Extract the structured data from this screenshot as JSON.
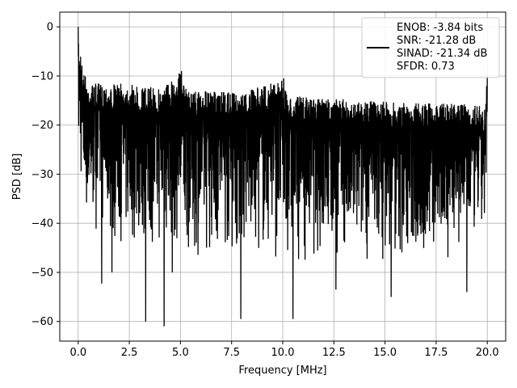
{
  "chart_data": {
    "type": "line",
    "xlabel": "Frequency [MHz]",
    "ylabel": "PSD [dB]",
    "xlim": [
      -0.9,
      20.9
    ],
    "ylim": [
      -64.0,
      3.0
    ],
    "xticks": [
      0.0,
      2.5,
      5.0,
      7.5,
      10.0,
      12.5,
      15.0,
      17.5,
      20.0
    ],
    "xtick_labels": [
      "0.0",
      "2.5",
      "5.0",
      "7.5",
      "10.0",
      "12.5",
      "15.0",
      "17.5",
      "20.0"
    ],
    "yticks": [
      0,
      -10,
      -20,
      -30,
      -40,
      -50,
      -60
    ],
    "ytick_labels": [
      "0",
      "−10",
      "−20",
      "−30",
      "−40",
      "−50",
      "−60"
    ],
    "grid": true,
    "legend_position": "top-right",
    "series_color": "#000000",
    "legend": {
      "lines": [
        "ENOB: -3.84 bits",
        "SNR: -21.28 dB",
        "SINAD: -21.34 dB",
        "SFDR: 0.73"
      ]
    },
    "series": [
      {
        "name": "ENOB: -3.84 bits\nSNR: -21.28 dB\nSINAD: -21.34 dB\nSFDR: 0.73",
        "x_start": 0.0,
        "x_end": 20.0,
        "upper_envelope": [
          [
            0.0,
            0.0
          ],
          [
            0.05,
            -5.0
          ],
          [
            0.1,
            -3.0
          ],
          [
            0.2,
            -8.0
          ],
          [
            0.5,
            -11.5
          ],
          [
            1.0,
            -11.5
          ],
          [
            2.0,
            -11.5
          ],
          [
            3.0,
            -12.0
          ],
          [
            4.0,
            -12.5
          ],
          [
            5.0,
            -9.0
          ],
          [
            5.2,
            -12.5
          ],
          [
            6.0,
            -13.0
          ],
          [
            8.0,
            -13.5
          ],
          [
            10.0,
            -10.5
          ],
          [
            10.2,
            -14.0
          ],
          [
            12.0,
            -14.5
          ],
          [
            14.0,
            -15.0
          ],
          [
            16.0,
            -15.5
          ],
          [
            18.0,
            -15.5
          ],
          [
            19.9,
            -16.0
          ],
          [
            20.0,
            -10.0
          ]
        ],
        "lower_envelope": [
          [
            0.0,
            -28.0
          ],
          [
            0.3,
            -40.0
          ],
          [
            1.0,
            -42.0
          ],
          [
            2.0,
            -45.0
          ],
          [
            4.0,
            -46.0
          ],
          [
            6.0,
            -47.0
          ],
          [
            8.0,
            -47.0
          ],
          [
            10.0,
            -48.0
          ],
          [
            12.0,
            -48.0
          ],
          [
            14.0,
            -48.0
          ],
          [
            16.0,
            -49.0
          ],
          [
            18.0,
            -48.0
          ],
          [
            20.0,
            -44.0
          ]
        ],
        "deep_dips": [
          [
            1.15,
            -52.3
          ],
          [
            1.65,
            -50.0
          ],
          [
            3.3,
            -60.0
          ],
          [
            4.2,
            -61.0
          ],
          [
            4.6,
            -50.0
          ],
          [
            7.95,
            -59.5
          ],
          [
            10.5,
            -59.5
          ],
          [
            15.3,
            -55.0
          ],
          [
            12.6,
            -53.5
          ],
          [
            19.0,
            -54.0
          ]
        ],
        "spikes": [
          [
            0.0,
            0.0
          ],
          [
            5.05,
            -9.0
          ],
          [
            10.05,
            -10.5
          ],
          [
            20.0,
            -10.0
          ]
        ]
      }
    ]
  }
}
